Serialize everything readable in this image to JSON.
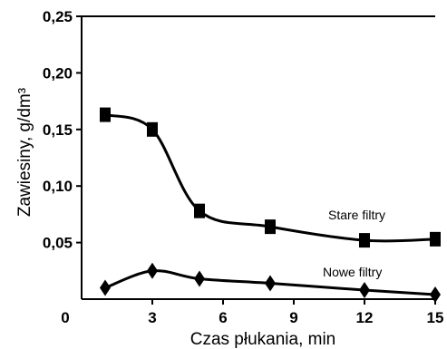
{
  "chart_data": {
    "type": "line",
    "xlabel": "Czas płukania, min",
    "ylabel": "Zawiesiny, g/dm³",
    "xlim": [
      0,
      15
    ],
    "ylim": [
      0,
      0.25
    ],
    "x_ticks": [
      "0",
      "3",
      "6",
      "9",
      "12",
      "15"
    ],
    "y_ticks": [
      "0,05",
      "0,10",
      "0,15",
      "0,20",
      "0,25"
    ],
    "grid": false,
    "legend": "labels placed next to each series",
    "series": [
      {
        "name": "Stare filtry",
        "marker": "square",
        "x": [
          1,
          3,
          5,
          8,
          12,
          15
        ],
        "y": [
          0.163,
          0.15,
          0.078,
          0.064,
          0.052,
          0.053
        ]
      },
      {
        "name": "Nowe filtry",
        "marker": "diamond",
        "x": [
          1,
          3,
          5,
          8,
          12,
          15
        ],
        "y": [
          0.01,
          0.025,
          0.018,
          0.014,
          0.008,
          0.004
        ]
      }
    ]
  }
}
